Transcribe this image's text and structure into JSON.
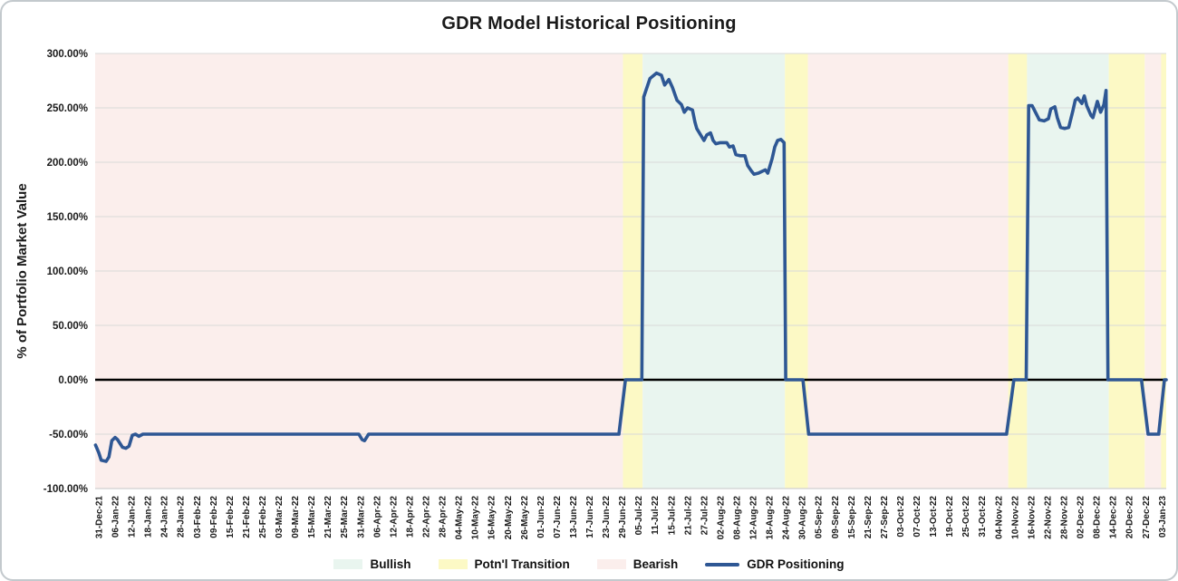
{
  "legend": [
    {
      "label": "Bullish",
      "type": "fill",
      "color": "#e9f5ef"
    },
    {
      "label": "Potn'l Transition",
      "type": "fill",
      "color": "#fcf9c5"
    },
    {
      "label": "Bearish",
      "type": "fill",
      "color": "#fbeeec"
    },
    {
      "label": "GDR Positioning",
      "type": "line",
      "color": "#2e5794"
    }
  ],
  "chart_data": {
    "type": "line",
    "title": "GDR Model Historical Positioning",
    "ylabel": "% of Portfolio Market Value",
    "ylim": [
      -100,
      300
    ],
    "y_ticks": [
      {
        "value": 300,
        "label": "300.00%"
      },
      {
        "value": 250,
        "label": "250.00%"
      },
      {
        "value": 200,
        "label": "200.00%"
      },
      {
        "value": 150,
        "label": "150.00%"
      },
      {
        "value": 100,
        "label": "100.00%"
      },
      {
        "value": 50,
        "label": "50.00%"
      },
      {
        "value": 0,
        "label": "0.00%"
      },
      {
        "value": -50,
        "label": "-50.00%"
      },
      {
        "value": -100,
        "label": "-100.00%"
      }
    ],
    "x_unit": "tick_index (0 = first x label, labels every tick)",
    "x_range": [
      -0.22,
      65.26
    ],
    "x_tick_labels": [
      "31-Dec-21",
      "06-Jan-22",
      "12-Jan-22",
      "18-Jan-22",
      "24-Jan-22",
      "28-Jan-22",
      "03-Feb-22",
      "09-Feb-22",
      "15-Feb-22",
      "21-Feb-22",
      "25-Feb-22",
      "03-Mar-22",
      "09-Mar-22",
      "15-Mar-22",
      "21-Mar-22",
      "25-Mar-22",
      "31-Mar-22",
      "06-Apr-22",
      "12-Apr-22",
      "18-Apr-22",
      "22-Apr-22",
      "28-Apr-22",
      "04-May-22",
      "10-May-22",
      "16-May-22",
      "20-May-22",
      "26-May-22",
      "01-Jun-22",
      "07-Jun-22",
      "13-Jun-22",
      "17-Jun-22",
      "23-Jun-22",
      "29-Jun-22",
      "05-Jul-22",
      "11-Jul-22",
      "15-Jul-22",
      "21-Jul-22",
      "27-Jul-22",
      "02-Aug-22",
      "08-Aug-22",
      "12-Aug-22",
      "18-Aug-22",
      "24-Aug-22",
      "30-Aug-22",
      "05-Sep-22",
      "09-Sep-22",
      "15-Sep-22",
      "21-Sep-22",
      "27-Sep-22",
      "03-Oct-22",
      "07-Oct-22",
      "13-Oct-22",
      "19-Oct-22",
      "25-Oct-22",
      "31-Oct-22",
      "04-Nov-22",
      "10-Nov-22",
      "16-Nov-22",
      "22-Nov-22",
      "28-Nov-22",
      "02-Dec-22",
      "08-Dec-22",
      "14-Dec-22",
      "20-Dec-22",
      "27-Dec-22",
      "03-Jan-23"
    ],
    "region_colors": {
      "bullish": "#e9f5ef",
      "transition": "#fcf9c5",
      "bearish": "#fbeeec"
    },
    "regions": [
      {
        "type": "bearish",
        "from": -0.22,
        "to": 32.05
      },
      {
        "type": "transition",
        "from": 32.05,
        "to": 33.25
      },
      {
        "type": "bullish",
        "from": 33.25,
        "to": 41.95
      },
      {
        "type": "transition",
        "from": 41.95,
        "to": 43.35
      },
      {
        "type": "bearish",
        "from": 43.35,
        "to": 55.6
      },
      {
        "type": "transition",
        "from": 55.6,
        "to": 56.75
      },
      {
        "type": "bullish",
        "from": 56.75,
        "to": 61.75
      },
      {
        "type": "transition",
        "from": 61.75,
        "to": 63.95
      },
      {
        "type": "bearish",
        "from": 63.95,
        "to": 64.95
      },
      {
        "type": "transition",
        "from": 64.95,
        "to": 65.26
      }
    ],
    "grid_color": "#d9d9d9",
    "axis_line_color": "#d0d0d0",
    "zero_line_color": "#000000",
    "series": [
      {
        "name": "GDR Positioning",
        "color": "#2e5794",
        "points": [
          [
            -0.2,
            -60
          ],
          [
            0,
            -67
          ],
          [
            0.15,
            -74
          ],
          [
            0.45,
            -75
          ],
          [
            0.62,
            -71
          ],
          [
            0.8,
            -56
          ],
          [
            1.0,
            -53
          ],
          [
            1.15,
            -55
          ],
          [
            1.45,
            -62
          ],
          [
            1.65,
            -63
          ],
          [
            1.85,
            -61
          ],
          [
            2.05,
            -51
          ],
          [
            2.25,
            -50
          ],
          [
            2.45,
            -52
          ],
          [
            2.7,
            -50
          ],
          [
            15.9,
            -50
          ],
          [
            16.1,
            -55
          ],
          [
            16.25,
            -56
          ],
          [
            16.5,
            -50
          ],
          [
            31.8,
            -50
          ],
          [
            32.2,
            0
          ],
          [
            33.2,
            0
          ],
          [
            33.32,
            260
          ],
          [
            33.7,
            277
          ],
          [
            34.1,
            282
          ],
          [
            34.4,
            280
          ],
          [
            34.6,
            271
          ],
          [
            34.85,
            276
          ],
          [
            35.07,
            269
          ],
          [
            35.35,
            257
          ],
          [
            35.62,
            253
          ],
          [
            35.8,
            246
          ],
          [
            36.0,
            250
          ],
          [
            36.3,
            248
          ],
          [
            36.45,
            237
          ],
          [
            36.56,
            231
          ],
          [
            36.84,
            224
          ],
          [
            37.0,
            220
          ],
          [
            37.17,
            225
          ],
          [
            37.4,
            227
          ],
          [
            37.56,
            220
          ],
          [
            37.73,
            217
          ],
          [
            38.0,
            218
          ],
          [
            38.4,
            218
          ],
          [
            38.56,
            214
          ],
          [
            38.78,
            215
          ],
          [
            38.95,
            207
          ],
          [
            39.2,
            206
          ],
          [
            39.5,
            206
          ],
          [
            39.67,
            197
          ],
          [
            39.9,
            192
          ],
          [
            40.06,
            189
          ],
          [
            40.33,
            190
          ],
          [
            40.6,
            192
          ],
          [
            40.75,
            193
          ],
          [
            40.9,
            190
          ],
          [
            41.16,
            203
          ],
          [
            41.33,
            214
          ],
          [
            41.5,
            220
          ],
          [
            41.7,
            221
          ],
          [
            41.9,
            218
          ],
          [
            42.0,
            0
          ],
          [
            43.05,
            0
          ],
          [
            43.4,
            -50
          ],
          [
            55.5,
            -50
          ],
          [
            55.95,
            0
          ],
          [
            56.7,
            0
          ],
          [
            56.85,
            252
          ],
          [
            57.06,
            252
          ],
          [
            57.3,
            245
          ],
          [
            57.5,
            239
          ],
          [
            57.8,
            238
          ],
          [
            58.06,
            240
          ],
          [
            58.2,
            249
          ],
          [
            58.45,
            251
          ],
          [
            58.6,
            241
          ],
          [
            58.8,
            232
          ],
          [
            59.05,
            231
          ],
          [
            59.3,
            232
          ],
          [
            59.55,
            247
          ],
          [
            59.7,
            257
          ],
          [
            59.85,
            259
          ],
          [
            60.1,
            254
          ],
          [
            60.25,
            261
          ],
          [
            60.4,
            252
          ],
          [
            60.66,
            243
          ],
          [
            60.78,
            241
          ],
          [
            61.05,
            256
          ],
          [
            61.25,
            246
          ],
          [
            61.45,
            253
          ],
          [
            61.58,
            266
          ],
          [
            61.7,
            0
          ],
          [
            63.75,
            0
          ],
          [
            64.15,
            -50
          ],
          [
            64.8,
            -50
          ],
          [
            65.15,
            0
          ],
          [
            65.26,
            0
          ]
        ]
      }
    ]
  }
}
